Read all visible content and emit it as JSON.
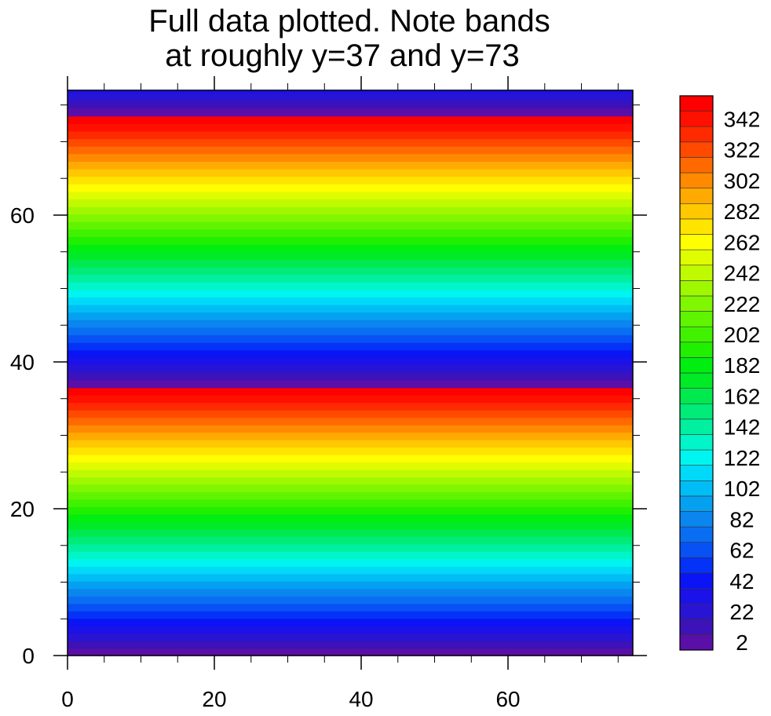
{
  "chart_data": {
    "type": "heatmap",
    "title_lines": [
      "Full data plotted. Note bands",
      "at roughly y=37 and y=73"
    ],
    "xlabel": "",
    "ylabel": "",
    "xlim": [
      0,
      77
    ],
    "ylim": [
      0,
      77
    ],
    "x_ticks": [
      0,
      20,
      40,
      60
    ],
    "y_ticks": [
      0,
      20,
      40,
      60
    ],
    "x_minor_step": 5,
    "y_minor_step": 5,
    "field_description_free": true,
    "rows": [
      {
        "y_from": 0,
        "y_to": 36.5,
        "value_from": 2,
        "value_to": 362
      },
      {
        "y_from": 36.5,
        "y_to": 73.5,
        "value_from": 2,
        "value_to": 362
      },
      {
        "y_from": 73.5,
        "y_to": 77,
        "value_from": 2,
        "value_to": 36
      }
    ],
    "colorbar": {
      "levels": [
        2,
        12,
        22,
        32,
        42,
        52,
        62,
        72,
        82,
        92,
        102,
        112,
        122,
        132,
        142,
        152,
        162,
        172,
        182,
        192,
        202,
        212,
        222,
        232,
        242,
        252,
        262,
        272,
        282,
        292,
        302,
        312,
        322,
        332,
        342,
        352
      ],
      "labels": [
        "2",
        "22",
        "42",
        "62",
        "82",
        "102",
        "122",
        "142",
        "162",
        "182",
        "202",
        "222",
        "242",
        "262",
        "282",
        "302",
        "322",
        "342"
      ],
      "colors": [
        "#5a0fa8",
        "#3d12b8",
        "#2a14d4",
        "#1a12e8",
        "#0a14f5",
        "#0532f7",
        "#0852f5",
        "#0a6ef2",
        "#0a86ee",
        "#06a0f0",
        "#00bef5",
        "#00daf8",
        "#00f5f0",
        "#00f5c8",
        "#00f0a0",
        "#00eb78",
        "#00ea50",
        "#00ea28",
        "#00ee10",
        "#20f000",
        "#40f200",
        "#60f400",
        "#80f600",
        "#a0f800",
        "#c0fa00",
        "#e0fc00",
        "#ffff00",
        "#ffe400",
        "#ffc800",
        "#ffaa00",
        "#ff8a00",
        "#ff6a00",
        "#ff4a00",
        "#ff2a00",
        "#ff1000",
        "#ff0000"
      ]
    }
  }
}
